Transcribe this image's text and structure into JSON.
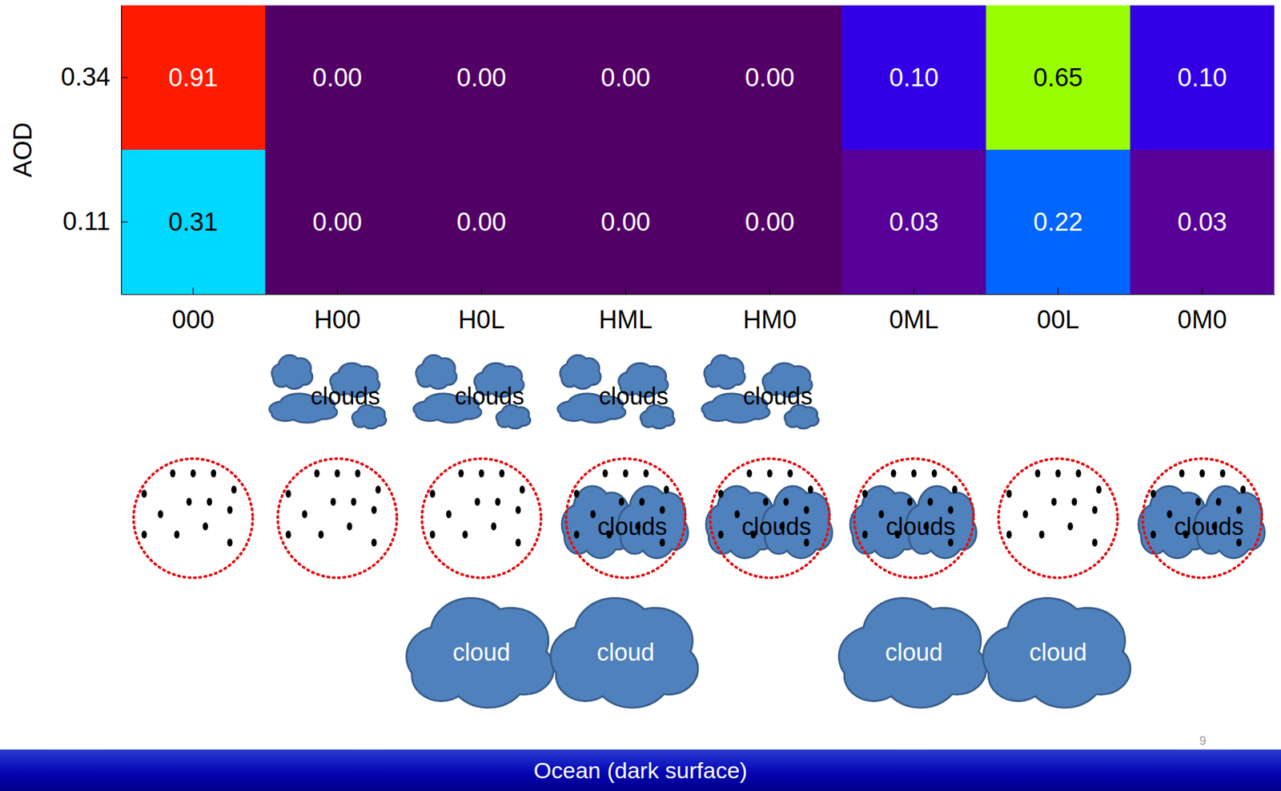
{
  "chart_data": {
    "type": "heatmap",
    "x": [
      "000",
      "H00",
      "H0L",
      "HML",
      "HM0",
      "0ML",
      "00L",
      "0M0"
    ],
    "y": [
      0.34,
      0.11
    ],
    "ylabel": "AOD",
    "z": [
      [
        0.91,
        0.0,
        0.0,
        0.0,
        0.0,
        0.1,
        0.65,
        0.1
      ],
      [
        0.31,
        0.0,
        0.0,
        0.0,
        0.0,
        0.03,
        0.22,
        0.03
      ]
    ],
    "value_labels": [
      [
        "0.91",
        "0.00",
        "0.00",
        "0.00",
        "0.00",
        "0.10",
        "0.65",
        "0.10"
      ],
      [
        "0.31",
        "0.00",
        "0.00",
        "0.00",
        "0.00",
        "0.03",
        "0.22",
        "0.03"
      ]
    ],
    "colors": [
      [
        "#ff1a00",
        "#520066",
        "#520066",
        "#520066",
        "#520066",
        "#3300e6",
        "#99ff00",
        "#3300e6"
      ],
      [
        "#00d8ff",
        "#520066",
        "#520066",
        "#520066",
        "#520066",
        "#57009a",
        "#0066ff",
        "#57009a"
      ]
    ],
    "data_labels": true
  },
  "diagram": {
    "scenes": [
      {
        "high": false,
        "middle": false,
        "low": false
      },
      {
        "high": true,
        "middle": false,
        "low": false
      },
      {
        "high": true,
        "middle": false,
        "low": true
      },
      {
        "high": true,
        "middle": true,
        "low": true
      },
      {
        "high": true,
        "middle": true,
        "low": false
      },
      {
        "high": false,
        "middle": true,
        "low": true
      },
      {
        "high": false,
        "middle": false,
        "low": true
      },
      {
        "high": false,
        "middle": true,
        "low": false
      }
    ],
    "labels": {
      "high": "clouds",
      "middle": "clouds",
      "low": "cloud"
    },
    "surface": "Ocean (dark surface)",
    "page_number": "9"
  }
}
